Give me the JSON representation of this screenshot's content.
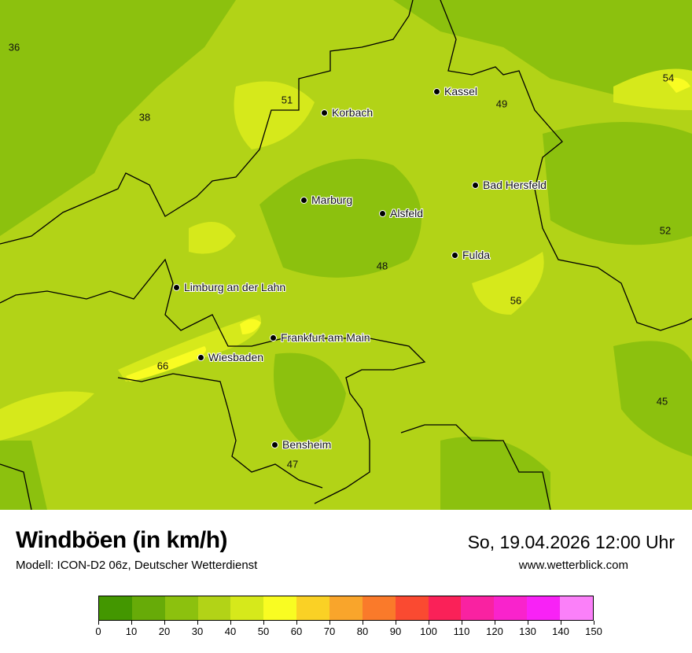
{
  "header": {
    "title": "Windböen (in km/h)",
    "subtitle": "Modell: ICON-D2 06z, Deutscher Wetterdienst",
    "datetime": "So, 19.04.2026 12:00 Uhr",
    "website": "www.wetterblick.com"
  },
  "cities": [
    {
      "name": "Kassel"
    },
    {
      "name": "Korbach"
    },
    {
      "name": "Bad Hersfeld"
    },
    {
      "name": "Marburg"
    },
    {
      "name": "Alsfeld"
    },
    {
      "name": "Fulda"
    },
    {
      "name": "Limburg an der Lahn"
    },
    {
      "name": "Frankfurt am Main"
    },
    {
      "name": "Wiesbaden"
    },
    {
      "name": "Bensheim"
    }
  ],
  "values": [
    "36",
    "51",
    "38",
    "49",
    "54",
    "52",
    "48",
    "56",
    "66",
    "45",
    "47"
  ],
  "legend": {
    "colors": [
      "#439700",
      "#67ab08",
      "#8cc10e",
      "#b2d317",
      "#d6e91b",
      "#f9fc22",
      "#fad125",
      "#f9a52b",
      "#fa7a2a",
      "#fa4a31",
      "#fa2158",
      "#f922a1",
      "#f923cc",
      "#f822f6",
      "#fb80f9"
    ],
    "ticks": [
      "0",
      "10",
      "20",
      "30",
      "40",
      "50",
      "60",
      "70",
      "80",
      "90",
      "100",
      "110",
      "120",
      "130",
      "140",
      "150"
    ]
  }
}
